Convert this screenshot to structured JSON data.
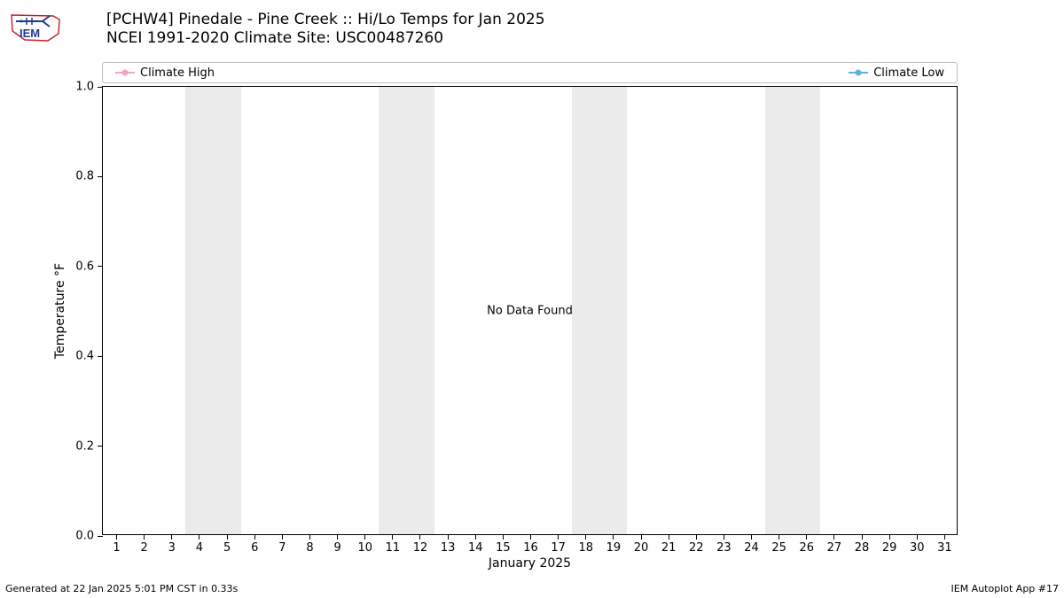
{
  "title": {
    "line1": "[PCHW4] Pinedale - Pine Creek :: Hi/Lo Temps for Jan 2025",
    "line2": "NCEI 1991-2020 Climate Site: USC00487260"
  },
  "legend": {
    "items": [
      {
        "label": "Climate High",
        "color": "#f4a6b7"
      },
      {
        "label": "Climate Low",
        "color": "#5fb3e0"
      }
    ]
  },
  "chart": {
    "type": "line",
    "xlabel": "January 2025",
    "ylabel": "Temperature °F",
    "ylim": [
      0.0,
      1.0
    ],
    "ytick_step": 0.2,
    "yticks": [
      "0.0",
      "0.2",
      "0.4",
      "0.6",
      "0.8",
      "1.0"
    ],
    "xrange_days": 31,
    "xticks": [
      "1",
      "2",
      "3",
      "4",
      "5",
      "6",
      "7",
      "8",
      "9",
      "10",
      "11",
      "12",
      "13",
      "14",
      "15",
      "16",
      "17",
      "18",
      "19",
      "20",
      "21",
      "22",
      "23",
      "24",
      "25",
      "26",
      "27",
      "28",
      "29",
      "30",
      "31"
    ],
    "weekend_days": [
      [
        4,
        5
      ],
      [
        11,
        12
      ],
      [
        18,
        19
      ],
      [
        25,
        26
      ]
    ],
    "weekend_color": "#ebebeb",
    "background_color": "#ffffff",
    "border_color": "#000000",
    "center_message": "No Data Found",
    "series": []
  },
  "footer": {
    "left": "Generated at 22 Jan 2025 5:01 PM CST in 0.33s",
    "right": "IEM Autoplot App #17"
  },
  "logo": {
    "text": "IEM",
    "outline_color": "#c42127",
    "stroke_color": "#1f3a93"
  }
}
